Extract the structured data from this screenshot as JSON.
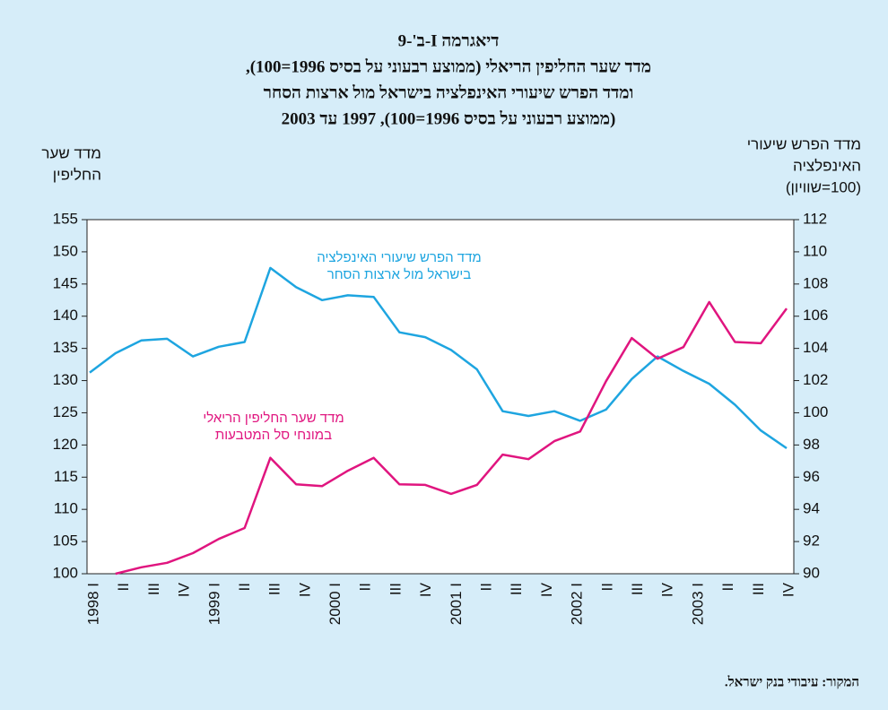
{
  "chart_data": {
    "type": "line",
    "title": [
      "דיאגרמה I-ב'-9",
      "מדד שער החליפין הריאלי (ממוצע רבעוני על בסיס 1996=100),",
      "ומדד הפרש שיעורי האינפלציה בישראל מול ארצות הסחר",
      "(ממוצע רבעוני על בסיס 1996=100), 1997 עד 2003"
    ],
    "y_label": [
      "מדד שער",
      "החליפין"
    ],
    "y2_label": [
      "מדד הפרש שיעורי",
      "האינפלציה",
      "(100=שוויון)"
    ],
    "source": "המקור: עיבודי בנק ישראל.",
    "categories": [
      null,
      null,
      null,
      null,
      "1998 I",
      "II",
      "III",
      "IV",
      "1999 I",
      "II",
      "III",
      "IV",
      "2000 I",
      "II",
      "III",
      "IV",
      "2001 I",
      "II",
      "III",
      "IV",
      "2002 I",
      "II",
      "III",
      "IV",
      "2003 I",
      "II",
      "III",
      "IV"
    ],
    "series": [
      {
        "annotation": [
          "מדד הפרש שיעורי האינפלציה",
          "בישראל מול ארצות הסחר"
        ],
        "color": "#1ea5e0",
        "axis": "y2",
        "values": [
          102.5,
          103.7,
          104.5,
          104.6,
          103.5,
          104.1,
          104.4,
          109.0,
          107.8,
          107.0,
          107.3,
          107.2,
          105.0,
          104.7,
          103.9,
          102.7,
          100.1,
          99.8,
          100.1,
          99.5,
          100.2,
          102.1,
          103.5,
          102.6,
          101.8,
          100.5,
          98.9,
          97.8
        ]
      },
      {
        "annotation": [
          "מדד שער החליפין הריאלי",
          "במונחי סל המטבעות"
        ],
        "color": "#e0157f",
        "values": [
          null,
          100.0,
          101.0,
          101.7,
          103.2,
          105.4,
          107.1,
          118.0,
          113.9,
          113.6,
          116.0,
          118.0,
          113.9,
          113.8,
          112.4,
          113.8,
          118.5,
          117.8,
          120.6,
          122.1,
          129.9,
          136.6,
          133.4,
          135.2,
          142.2,
          136.0,
          135.8,
          141.2
        ]
      }
    ],
    "ylim": [
      100,
      155
    ],
    "yticks": [
      100,
      105,
      110,
      115,
      120,
      125,
      130,
      135,
      140,
      145,
      150,
      155
    ],
    "y2lim": [
      90,
      112
    ],
    "y2ticks": [
      90,
      92,
      94,
      96,
      98,
      100,
      102,
      104,
      106,
      108,
      110,
      112
    ]
  }
}
